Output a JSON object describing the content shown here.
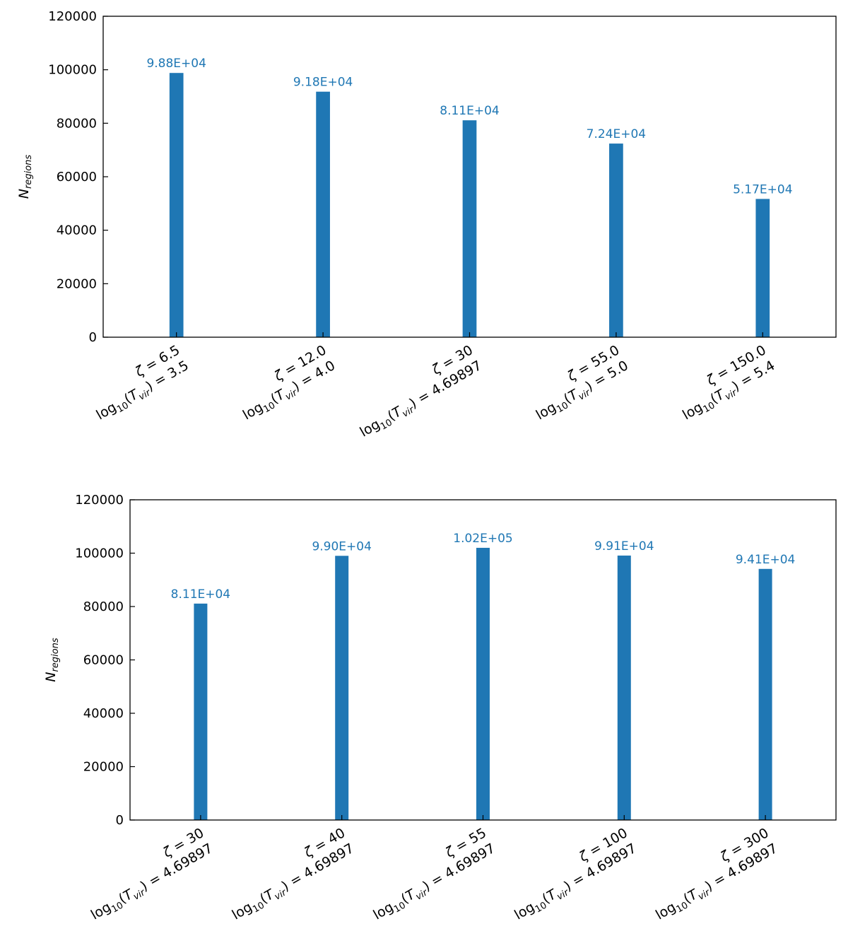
{
  "colors": {
    "bar": "#1f77b4",
    "axis": "#000000",
    "label": "#1f77b4"
  },
  "chart_data": [
    {
      "type": "bar",
      "ylabel": "N_regions",
      "ylim": [
        0,
        120000
      ],
      "yticks": [
        0,
        20000,
        40000,
        60000,
        80000,
        100000,
        120000
      ],
      "categories": [
        {
          "zeta": "6.5",
          "logT": "3.5"
        },
        {
          "zeta": "12.0",
          "logT": "4.0"
        },
        {
          "zeta": "30",
          "logT": "4.69897"
        },
        {
          "zeta": "55.0",
          "logT": "5.0"
        },
        {
          "zeta": "150.0",
          "logT": "5.4"
        }
      ],
      "values": [
        98800,
        91800,
        81100,
        72400,
        51700
      ],
      "value_labels": [
        "9.88E+04",
        "9.18E+04",
        "8.11E+04",
        "7.24E+04",
        "5.17E+04"
      ],
      "grid": false
    },
    {
      "type": "bar",
      "ylabel": "N_regions",
      "ylim": [
        0,
        120000
      ],
      "yticks": [
        0,
        20000,
        40000,
        60000,
        80000,
        100000,
        120000
      ],
      "categories": [
        {
          "zeta": "30",
          "logT": "4.69897"
        },
        {
          "zeta": "40",
          "logT": "4.69897"
        },
        {
          "zeta": "55",
          "logT": "4.69897"
        },
        {
          "zeta": "100",
          "logT": "4.69897"
        },
        {
          "zeta": "300",
          "logT": "4.69897"
        }
      ],
      "values": [
        81100,
        99000,
        102000,
        99100,
        94100
      ],
      "value_labels": [
        "8.11E+04",
        "9.90E+04",
        "1.02E+05",
        "9.91E+04",
        "9.41E+04"
      ],
      "grid": false
    }
  ]
}
